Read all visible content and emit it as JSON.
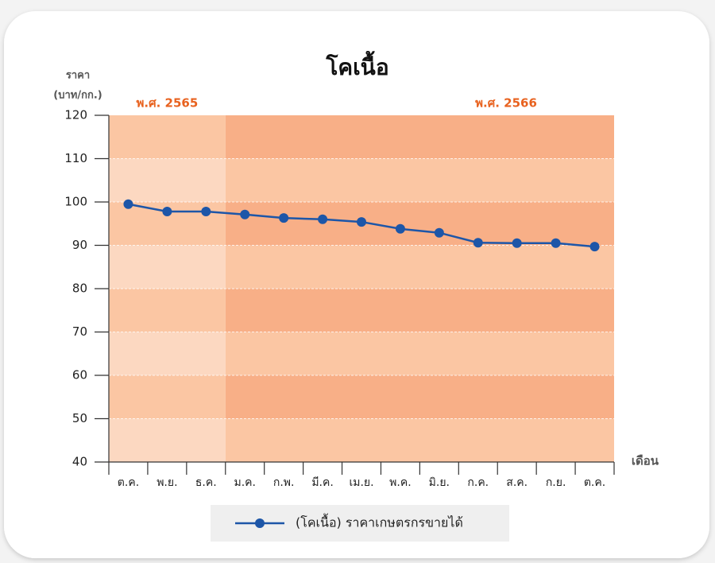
{
  "chart_data": {
    "type": "line",
    "title": "โคเนื้อ",
    "y_axis_label": [
      "ราคา",
      "(บาท/กก.)"
    ],
    "x_axis_label": "เดือน",
    "categories": [
      "ต.ค.",
      "พ.ย.",
      "ธ.ค.",
      "ม.ค.",
      "ก.พ.",
      "มี.ค.",
      "เม.ย.",
      "พ.ค.",
      "มิ.ย.",
      "ก.ค.",
      "ส.ค.",
      "ก.ย.",
      "ต.ค."
    ],
    "series": [
      {
        "name": "(โคเนื้อ) ราคาเกษตรกรขายได้",
        "color": "#1d56a8",
        "values": [
          99.5,
          97.8,
          97.8,
          97.1,
          96.3,
          96.0,
          95.4,
          93.8,
          92.9,
          90.6,
          90.5,
          90.5,
          89.7
        ]
      }
    ],
    "ylim": [
      40,
      120
    ],
    "yticks": [
      40,
      50,
      60,
      70,
      80,
      90,
      100,
      110,
      120
    ],
    "periods": [
      {
        "label": "พ.ศ. 2565",
        "first_category": 0,
        "last_category": 2,
        "band_colors": [
          "#fcd8c1",
          "#fbc6a3"
        ]
      },
      {
        "label": "พ.ศ. 2566",
        "first_category": 3,
        "last_category": 12,
        "band_colors": [
          "#fbc6a3",
          "#f8af87"
        ]
      }
    ],
    "period_label_color": "#e8621f",
    "grid": true,
    "legend": "bottom"
  }
}
